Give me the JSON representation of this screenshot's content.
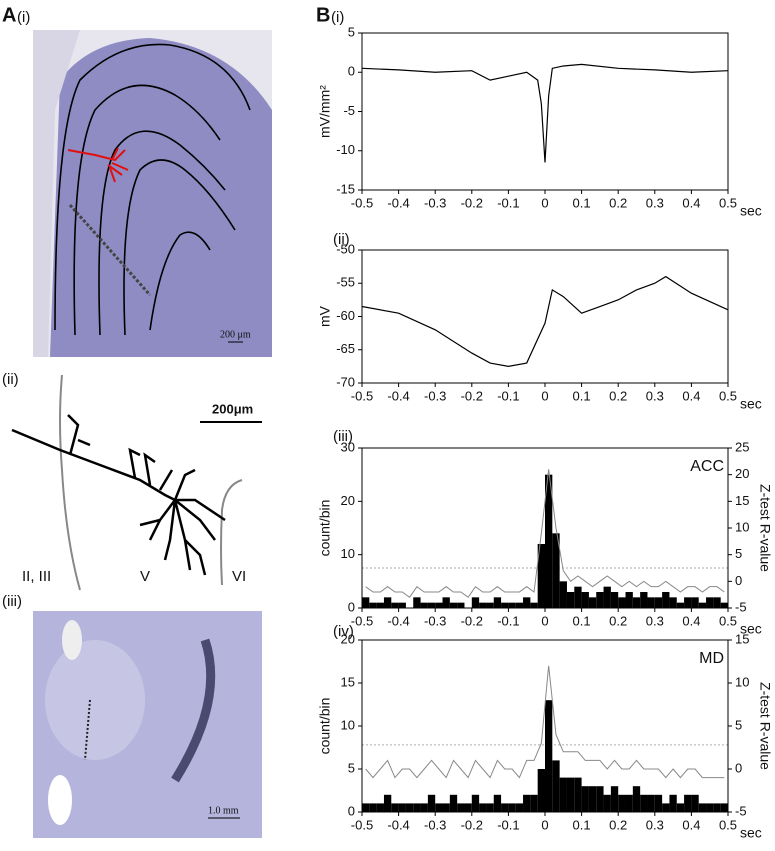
{
  "panel_a": {
    "label": "A",
    "sub": [
      "(i)",
      "(ii)",
      "(iii)"
    ],
    "scale_bars": [
      "200 μm",
      "200μm",
      "1.0 mm"
    ],
    "layers": [
      "II, III",
      "V",
      "VI"
    ]
  },
  "panel_b": {
    "label": "B",
    "sub": [
      "(i)",
      "(ii)",
      "(iii)",
      "(iv)"
    ]
  },
  "chart_data": [
    {
      "type": "line",
      "ylabel": "mV/mm²",
      "xlabel": "sec",
      "x": [
        -0.5,
        -0.4,
        -0.3,
        -0.2,
        -0.15,
        -0.1,
        -0.05,
        -0.02,
        -0.01,
        0,
        0.01,
        0.02,
        0.05,
        0.1,
        0.2,
        0.3,
        0.4,
        0.5
      ],
      "values": [
        0.5,
        0.3,
        0,
        0.2,
        -1,
        -0.5,
        0,
        -1,
        -4,
        -11.5,
        -3,
        0.5,
        0.8,
        1,
        0.5,
        0.3,
        0,
        0.2
      ],
      "color": "#000000",
      "xlim": [
        -0.5,
        0.5
      ],
      "xticks": [
        -0.5,
        -0.4,
        -0.3,
        -0.2,
        -0.1,
        0,
        0.1,
        0.2,
        0.3,
        0.4,
        0.5
      ],
      "ylim": [
        -15,
        5
      ],
      "yticks": [
        -15,
        -10,
        -5,
        0,
        5
      ]
    },
    {
      "type": "line",
      "ylabel": "mV",
      "xlabel": "sec",
      "x": [
        -0.5,
        -0.4,
        -0.3,
        -0.2,
        -0.15,
        -0.1,
        -0.05,
        0,
        0.02,
        0.05,
        0.1,
        0.15,
        0.2,
        0.25,
        0.3,
        0.33,
        0.4,
        0.5
      ],
      "values": [
        -58.5,
        -59.5,
        -62,
        -65.5,
        -67,
        -67.5,
        -67,
        -61,
        -56,
        -57,
        -59.5,
        -58.5,
        -57.5,
        -56,
        -55,
        -54,
        -56.5,
        -59
      ],
      "color": "#000000",
      "xlim": [
        -0.5,
        0.5
      ],
      "xticks": [
        -0.5,
        -0.4,
        -0.3,
        -0.2,
        -0.1,
        0,
        0.1,
        0.2,
        0.3,
        0.4,
        0.5
      ],
      "ylim": [
        -70,
        -50
      ],
      "yticks": [
        -70,
        -65,
        -60,
        -55,
        -50
      ]
    },
    {
      "type": "histogram",
      "ylabel": "count/bin",
      "y2label": "Z-test R-value",
      "xlabel": "sec",
      "annotation": "ACC",
      "bins": [
        -0.5,
        -0.48,
        -0.46,
        -0.44,
        -0.42,
        -0.4,
        -0.38,
        -0.36,
        -0.34,
        -0.32,
        -0.3,
        -0.28,
        -0.26,
        -0.24,
        -0.22,
        -0.2,
        -0.18,
        -0.16,
        -0.14,
        -0.12,
        -0.1,
        -0.08,
        -0.06,
        -0.04,
        -0.02,
        0,
        0.02,
        0.04,
        0.06,
        0.08,
        0.1,
        0.12,
        0.14,
        0.16,
        0.18,
        0.2,
        0.22,
        0.24,
        0.26,
        0.28,
        0.3,
        0.32,
        0.34,
        0.36,
        0.38,
        0.4,
        0.42,
        0.44,
        0.46,
        0.48,
        0.5
      ],
      "values": [
        2,
        1,
        1,
        2,
        1,
        1,
        0,
        2,
        1,
        1,
        1,
        2,
        1,
        1,
        0,
        2,
        1,
        1,
        2,
        1,
        1,
        1,
        2,
        1,
        12,
        25,
        14,
        5,
        3,
        4,
        3,
        2,
        3,
        4,
        3,
        2,
        3,
        2,
        3,
        2,
        2,
        3,
        2,
        1,
        2,
        2,
        1,
        2,
        2,
        1
      ],
      "y2_values": [
        -1,
        -2,
        -2,
        -1,
        -2,
        -2,
        -3,
        -1,
        -2,
        -2,
        -2,
        -1,
        -2,
        -2,
        -3,
        -1,
        -2,
        -2,
        -1,
        -2,
        -2,
        -2,
        -1,
        -2,
        9,
        21,
        10,
        2,
        0,
        1,
        0,
        -1,
        0,
        1,
        0,
        -1,
        0,
        -1,
        0,
        -1,
        -1,
        0,
        -1,
        -2,
        -1,
        -1,
        -2,
        -1,
        -1,
        -2
      ],
      "color": "#000000",
      "y2_color": "#888888",
      "reference_y2": [
        2.5
      ],
      "xlim": [
        -0.5,
        0.5
      ],
      "xticks": [
        -0.5,
        -0.4,
        -0.3,
        -0.2,
        -0.1,
        0,
        0.1,
        0.2,
        0.3,
        0.4,
        0.5
      ],
      "ylim": [
        0,
        30
      ],
      "yticks": [
        0,
        10,
        20,
        30
      ],
      "y2lim": [
        -5,
        25
      ],
      "y2ticks": [
        -5,
        0,
        5,
        10,
        15,
        20,
        25
      ]
    },
    {
      "type": "histogram",
      "ylabel": "count/bin",
      "y2label": "Z-test R-value",
      "xlabel": "sec",
      "annotation": "MD",
      "bins": [
        -0.5,
        -0.48,
        -0.46,
        -0.44,
        -0.42,
        -0.4,
        -0.38,
        -0.36,
        -0.34,
        -0.32,
        -0.3,
        -0.28,
        -0.26,
        -0.24,
        -0.22,
        -0.2,
        -0.18,
        -0.16,
        -0.14,
        -0.12,
        -0.1,
        -0.08,
        -0.06,
        -0.04,
        -0.02,
        0,
        0.02,
        0.04,
        0.06,
        0.08,
        0.1,
        0.12,
        0.14,
        0.16,
        0.18,
        0.2,
        0.22,
        0.24,
        0.26,
        0.28,
        0.3,
        0.32,
        0.34,
        0.36,
        0.38,
        0.4,
        0.42,
        0.44,
        0.46,
        0.48,
        0.5
      ],
      "values": [
        1,
        1,
        1,
        2,
        1,
        1,
        1,
        1,
        1,
        2,
        1,
        1,
        2,
        1,
        1,
        2,
        1,
        1,
        2,
        1,
        1,
        1,
        2,
        2,
        5,
        13,
        6,
        4,
        4,
        4,
        3,
        3,
        3,
        2,
        3,
        2,
        2,
        3,
        2,
        2,
        2,
        1,
        2,
        1,
        2,
        2,
        1,
        1,
        1,
        1
      ],
      "y2_values": [
        0,
        -1,
        0,
        1,
        -1,
        0,
        0,
        -1,
        0,
        1,
        0,
        -1,
        1,
        0,
        -1,
        1,
        0,
        -1,
        1,
        0,
        0,
        -1,
        1,
        1,
        3,
        12,
        4,
        2,
        2,
        2,
        1,
        1,
        1,
        0,
        1,
        0,
        0,
        1,
        0,
        0,
        0,
        -1,
        0,
        -1,
        0,
        0,
        -1,
        -1,
        -1,
        -1
      ],
      "color": "#000000",
      "y2_color": "#888888",
      "reference_y2": [
        2.8
      ],
      "xlim": [
        -0.5,
        0.5
      ],
      "xticks": [
        -0.5,
        -0.4,
        -0.3,
        -0.2,
        -0.1,
        0,
        0.1,
        0.2,
        0.3,
        0.4,
        0.5
      ],
      "ylim": [
        0,
        20
      ],
      "yticks": [
        0,
        5,
        10,
        15,
        20
      ],
      "y2lim": [
        -5,
        15
      ],
      "y2ticks": [
        -5,
        0,
        5,
        10,
        15
      ]
    }
  ]
}
